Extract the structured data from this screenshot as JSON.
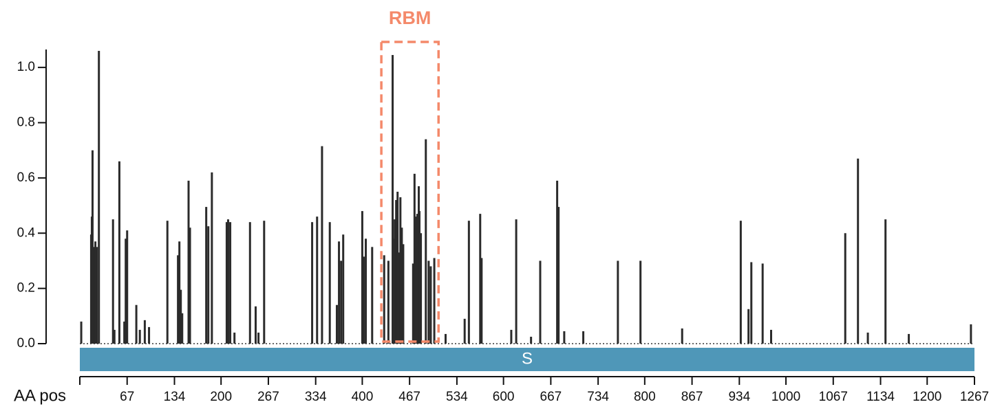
{
  "chart_data": {
    "type": "bar",
    "x_label": "AA pos",
    "color": "#2b2b2b",
    "x": [
      2,
      16,
      17,
      18,
      20,
      22,
      24,
      27,
      47,
      49,
      56,
      63,
      65,
      67,
      80,
      85,
      92,
      98,
      124,
      139,
      141,
      143,
      145,
      154,
      156,
      179,
      182,
      187,
      208,
      210,
      213,
      219,
      241,
      249,
      253,
      261,
      329,
      336,
      343,
      354,
      364,
      367,
      370,
      373,
      400,
      402,
      405,
      414,
      431,
      437,
      443,
      444,
      446,
      448,
      450,
      452,
      454,
      456,
      458,
      472,
      474,
      476,
      478,
      480,
      481,
      483,
      490,
      494,
      497,
      502,
      518,
      545,
      551,
      567,
      569,
      611,
      618,
      639,
      652,
      676,
      678,
      686,
      713,
      762,
      794,
      853,
      936,
      947,
      951,
      967,
      979,
      1084,
      1102,
      1116,
      1141,
      1174,
      1262
    ],
    "values": [
      0.08,
      0.395,
      0.46,
      0.7,
      0.35,
      0.37,
      0.35,
      1.06,
      0.45,
      0.05,
      0.66,
      0.08,
      0.38,
      0.41,
      0.14,
      0.05,
      0.085,
      0.06,
      0.445,
      0.32,
      0.37,
      0.195,
      0.11,
      0.59,
      0.42,
      0.495,
      0.425,
      0.62,
      0.44,
      0.45,
      0.44,
      0.04,
      0.44,
      0.135,
      0.04,
      0.445,
      0.44,
      0.46,
      0.715,
      0.44,
      0.14,
      0.37,
      0.3,
      0.395,
      0.48,
      0.315,
      0.38,
      0.35,
      0.32,
      0.3,
      1.045,
      0.38,
      0.45,
      0.52,
      0.55,
      0.33,
      0.53,
      0.42,
      0.36,
      0.29,
      0.615,
      0.46,
      0.47,
      0.57,
      0.48,
      0.4,
      0.74,
      0.3,
      0.28,
      0.31,
      0.035,
      0.09,
      0.445,
      0.47,
      0.31,
      0.05,
      0.45,
      0.025,
      0.3,
      0.59,
      0.495,
      0.045,
      0.045,
      0.3,
      0.3,
      0.055,
      0.445,
      0.125,
      0.295,
      0.29,
      0.05,
      0.4,
      0.67,
      0.04,
      0.45,
      0.035,
      0.07
    ],
    "xlim": [
      0,
      1267
    ],
    "xticks": [
      67,
      134,
      200,
      267,
      334,
      400,
      467,
      534,
      600,
      667,
      734,
      800,
      867,
      934,
      1000,
      1067,
      1134,
      1200,
      1267
    ],
    "ylim": [
      0,
      1.065
    ],
    "yticks": [
      {
        "value": 0,
        "label": "0.0"
      },
      {
        "value": 0.2,
        "label": "0.2"
      },
      {
        "value": 0.4,
        "label": "0.4"
      },
      {
        "value": 0.6,
        "label": "0.6"
      },
      {
        "value": 0.8,
        "label": "0.8"
      },
      {
        "value": 1.0,
        "label": "1.0"
      }
    ],
    "region": {
      "label": "RBM",
      "start": 427,
      "end": 508,
      "color": "#f4896a"
    },
    "domain": {
      "label": "S",
      "color": "#4f97b8"
    }
  }
}
